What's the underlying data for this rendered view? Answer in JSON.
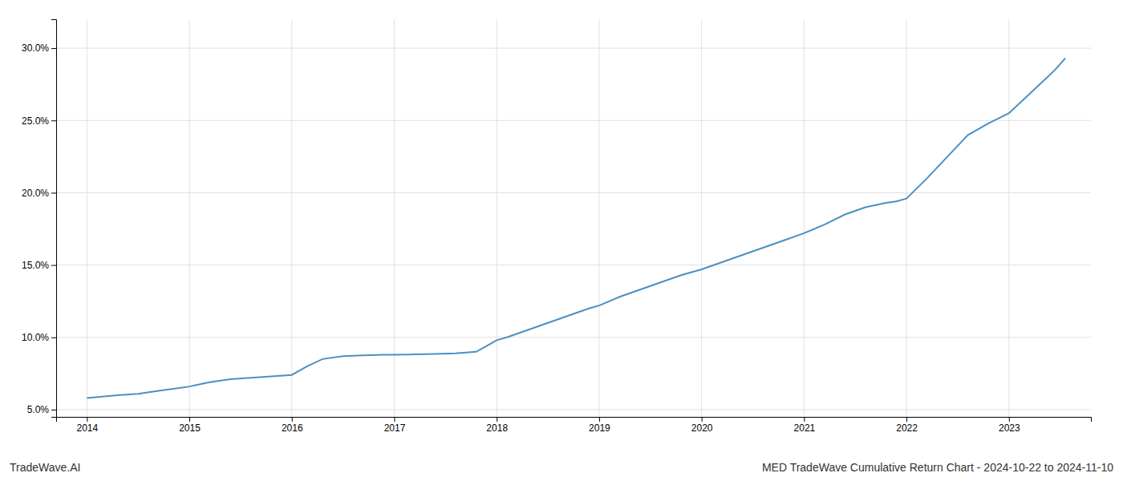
{
  "chart_data": {
    "type": "line",
    "title": "MED TradeWave Cumulative Return Chart - 2024-10-22 to 2024-11-10",
    "annotations": [
      "TradeWave.AI"
    ],
    "color": "#4a90c4",
    "grid": true,
    "x": [
      2014.0,
      2014.15,
      2014.3,
      2014.5,
      2014.7,
      2014.9,
      2015.0,
      2015.2,
      2015.4,
      2015.6,
      2015.8,
      2016.0,
      2016.15,
      2016.3,
      2016.5,
      2016.7,
      2016.9,
      2017.0,
      2017.2,
      2017.4,
      2017.6,
      2017.8,
      2017.95,
      2018.0,
      2018.1,
      2018.3,
      2018.5,
      2018.7,
      2018.9,
      2019.0,
      2019.2,
      2019.4,
      2019.6,
      2019.8,
      2020.0,
      2020.2,
      2020.4,
      2020.6,
      2020.8,
      2021.0,
      2021.2,
      2021.4,
      2021.6,
      2021.8,
      2021.9,
      2022.0,
      2022.2,
      2022.4,
      2022.6,
      2022.8,
      2023.0,
      2023.15,
      2023.3,
      2023.45,
      2023.55
    ],
    "values": [
      5.8,
      5.9,
      6.0,
      6.1,
      6.3,
      6.5,
      6.6,
      6.9,
      7.1,
      7.2,
      7.3,
      7.4,
      8.0,
      8.5,
      8.7,
      8.75,
      8.8,
      8.8,
      8.82,
      8.85,
      8.9,
      9.0,
      9.6,
      9.8,
      10.0,
      10.5,
      11.0,
      11.5,
      12.0,
      12.2,
      12.8,
      13.3,
      13.8,
      14.3,
      14.7,
      15.2,
      15.7,
      16.2,
      16.7,
      17.2,
      17.8,
      18.5,
      19.0,
      19.3,
      19.4,
      19.6,
      21.0,
      22.5,
      24.0,
      24.8,
      25.5,
      26.5,
      27.5,
      28.5,
      29.3
    ],
    "xlim": [
      2013.7,
      2023.8
    ],
    "xticks": [
      2014,
      2015,
      2016,
      2017,
      2018,
      2019,
      2020,
      2021,
      2022,
      2023
    ],
    "ylim": [
      4.5,
      32.0
    ],
    "yticks": [
      {
        "value": 5.0,
        "label": "5.0%"
      },
      {
        "value": 10.0,
        "label": "10.0%"
      },
      {
        "value": 15.0,
        "label": "15.0%"
      },
      {
        "value": 20.0,
        "label": "20.0%"
      },
      {
        "value": 25.0,
        "label": "25.0%"
      },
      {
        "value": 30.0,
        "label": "30.0%"
      }
    ]
  }
}
